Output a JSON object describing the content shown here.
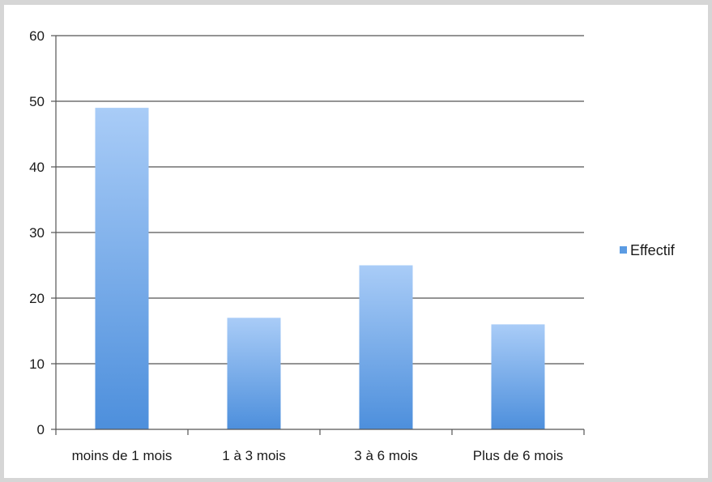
{
  "chart_data": {
    "type": "bar",
    "categories": [
      "moins de 1 mois",
      "1 à 3 mois",
      "3 à 6 mois",
      "Plus de 6 mois"
    ],
    "series": [
      {
        "name": "Effectif",
        "values": [
          49,
          17,
          25,
          16
        ]
      }
    ],
    "title": "",
    "xlabel": "",
    "ylabel": "",
    "ylim": [
      0,
      60
    ],
    "yticks": [
      0,
      10,
      20,
      30,
      40,
      50,
      60
    ],
    "grid": true,
    "legend_position": "right",
    "colors": {
      "bar_top": "#a9ccf7",
      "bar_bottom": "#4d8fdc",
      "legend_swatch": "#5b9be3",
      "gridline": "#555555"
    }
  }
}
